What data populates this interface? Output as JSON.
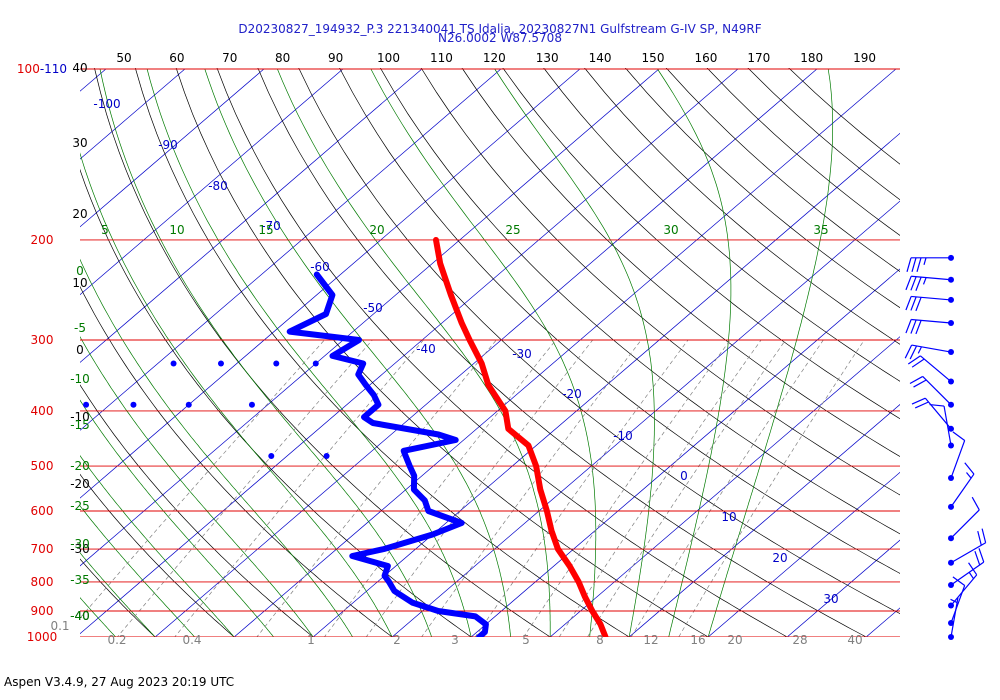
{
  "header": {
    "line1": "D20230827_194932_P.3 221340041 TS Idalia, 20230827N1 Gulfstream G-IV SP, N49RF",
    "line2": "N26.0002 W87.5708"
  },
  "footer": "Aspen V3.4.9, 27 Aug 2023  20:19 UTC",
  "colors": {
    "isobar": "#e00000",
    "isotherm": "#0000c8",
    "dry_adiabat": "#000000",
    "moist_adiabat": "#007a00",
    "mixing_ratio": "#808080",
    "temperature": "#ff0000",
    "dewpoint": "#0000ff",
    "wind_barb": "#0000ff"
  },
  "chart_data": {
    "type": "skew-t log-p",
    "pressure_labels": [
      "100-110",
      "200",
      "300",
      "400",
      "500",
      "600",
      "700",
      "800",
      "900",
      "1000"
    ],
    "top_scale": [
      "50",
      "60",
      "70",
      "80",
      "90",
      "100",
      "110",
      "120",
      "130",
      "140",
      "150",
      "160",
      "170",
      "180",
      "190"
    ],
    "left_scale": [
      "40",
      "30",
      "20",
      "10",
      "0",
      "-10",
      "-20",
      "-30",
      "-40"
    ],
    "isotherm_labels": [
      "-100",
      "-90",
      "-80",
      "-70",
      "-60",
      "-50",
      "-40",
      "-30",
      "-20",
      "-10",
      "0",
      "10",
      "20",
      "30"
    ],
    "moist_adiabat_top": [
      "5",
      "10",
      "15",
      "20",
      "25",
      "30",
      "35"
    ],
    "moist_adiabat_left": [
      "0",
      "-5",
      "-10",
      "-15",
      "-20",
      "-25",
      "-30",
      "-35",
      "-40"
    ],
    "mixing_ratio_labels": [
      "0.1",
      "0.2",
      "0.4",
      "1",
      "2",
      "3",
      "5",
      "8",
      "12",
      "16",
      "20",
      "28",
      "40"
    ],
    "temperature": [
      [
        200,
        -53
      ],
      [
        220,
        -49
      ],
      [
        250,
        -43
      ],
      [
        280,
        -37.5
      ],
      [
        300,
        -34
      ],
      [
        330,
        -29
      ],
      [
        360,
        -25
      ],
      [
        400,
        -19
      ],
      [
        430,
        -16
      ],
      [
        460,
        -11
      ],
      [
        500,
        -7
      ],
      [
        550,
        -3
      ],
      [
        600,
        1
      ],
      [
        650,
        4.5
      ],
      [
        700,
        8
      ],
      [
        750,
        12
      ],
      [
        800,
        15.5
      ],
      [
        850,
        18.5
      ],
      [
        900,
        21.5
      ],
      [
        950,
        24.5
      ],
      [
        1000,
        27
      ]
    ],
    "dewpoint": [
      [
        230,
        -63
      ],
      [
        250,
        -58
      ],
      [
        270,
        -56
      ],
      [
        290,
        -58
      ],
      [
        300,
        -48
      ],
      [
        320,
        -49
      ],
      [
        330,
        -44
      ],
      [
        345,
        -43
      ],
      [
        360,
        -40.5
      ],
      [
        375,
        -38
      ],
      [
        390,
        -36
      ],
      [
        410,
        -36
      ],
      [
        420,
        -34
      ],
      [
        440,
        -24
      ],
      [
        450,
        -21
      ],
      [
        470,
        -26
      ],
      [
        480,
        -25
      ],
      [
        500,
        -23
      ],
      [
        520,
        -21
      ],
      [
        550,
        -19
      ],
      [
        575,
        -16
      ],
      [
        600,
        -14
      ],
      [
        630,
        -8
      ],
      [
        660,
        -10
      ],
      [
        700,
        -14
      ],
      [
        720,
        -17
      ],
      [
        750,
        -11
      ],
      [
        780,
        -10
      ],
      [
        800,
        -8.5
      ],
      [
        830,
        -6.5
      ],
      [
        870,
        -2.5
      ],
      [
        900,
        2
      ],
      [
        920,
        7.5
      ],
      [
        950,
        10
      ],
      [
        980,
        11
      ],
      [
        1000,
        11
      ]
    ],
    "dewpoint_dropouts": [
      [
        330,
        -68
      ],
      [
        330,
        -62
      ],
      [
        330,
        -55
      ],
      [
        330,
        -50
      ],
      [
        390,
        -73
      ],
      [
        390,
        -67
      ],
      [
        390,
        -60
      ],
      [
        390,
        -52
      ],
      [
        480,
        -42
      ],
      [
        480,
        -35
      ]
    ],
    "wind_barbs": [
      {
        "p": 215,
        "speed": 35,
        "dir": 270
      },
      {
        "p": 235,
        "speed": 35,
        "dir": 275
      },
      {
        "p": 255,
        "speed": 30,
        "dir": 275
      },
      {
        "p": 280,
        "speed": 30,
        "dir": 275
      },
      {
        "p": 315,
        "speed": 25,
        "dir": 280
      },
      {
        "p": 355,
        "speed": 20,
        "dir": 310
      },
      {
        "p": 390,
        "speed": 20,
        "dir": 315
      },
      {
        "p": 430,
        "speed": 20,
        "dir": 320
      },
      {
        "p": 460,
        "speed": 10,
        "dir": 350
      },
      {
        "p": 525,
        "speed": 10,
        "dir": 20
      },
      {
        "p": 590,
        "speed": 15,
        "dir": 35
      },
      {
        "p": 670,
        "speed": 10,
        "dir": 45
      },
      {
        "p": 740,
        "speed": 20,
        "dir": 60
      },
      {
        "p": 810,
        "speed": 20,
        "dir": 55
      },
      {
        "p": 880,
        "speed": 15,
        "dir": 40
      },
      {
        "p": 945,
        "speed": 10,
        "dir": 20
      },
      {
        "p": 1000,
        "speed": 5,
        "dir": 10
      }
    ],
    "wind_barb_units": "kt",
    "grid": true
  }
}
